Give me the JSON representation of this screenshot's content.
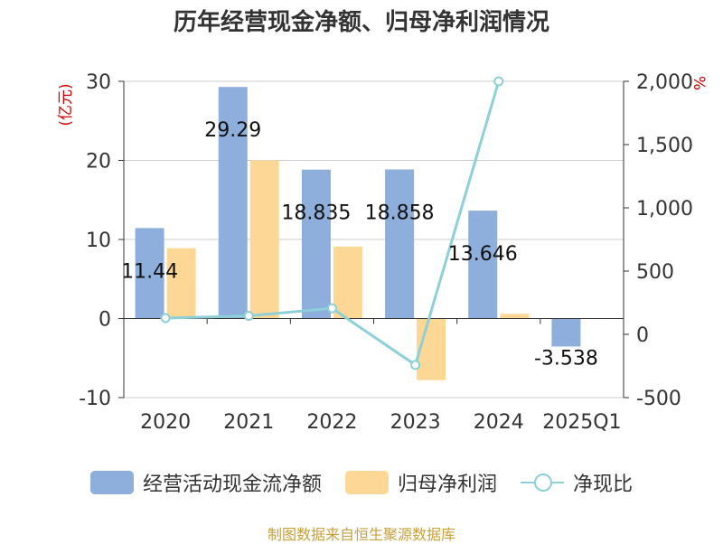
{
  "title": "历年经营现金净额、归母净利润情况",
  "source": "制图数据来自恒生聚源数据库",
  "colors": {
    "bar1": "#8eaedb",
    "bar2": "#fdd795",
    "line": "#8dd0d8",
    "left_unit": "#cc0000",
    "grid": "#cccccc"
  },
  "chart_data": {
    "type": "bar",
    "categories": [
      "2020",
      "2021",
      "2022",
      "2023",
      "2024",
      "2025Q1"
    ],
    "left_axis": {
      "unit": "(亿元)",
      "ylim": [
        -10,
        30
      ],
      "ticks": [
        "30",
        "20",
        "10",
        "0",
        "-10"
      ],
      "tick_values": [
        30,
        20,
        10,
        0,
        -10
      ]
    },
    "right_axis": {
      "unit": "%",
      "ylim": [
        -500,
        2000
      ],
      "ticks": [
        "2,000",
        "1,500",
        "1,000",
        "500",
        "0",
        "-500"
      ],
      "tick_values": [
        2000,
        1500,
        1000,
        500,
        0,
        -500
      ]
    },
    "series": [
      {
        "name": "经营活动现金流净额",
        "kind": "bar",
        "axis": "left",
        "values": [
          11.44,
          29.29,
          18.835,
          18.858,
          13.646,
          -3.538
        ],
        "labels": [
          "11.44",
          "29.29",
          "18.835",
          "18.858",
          "13.646",
          "-3.538"
        ]
      },
      {
        "name": "归母净利润",
        "kind": "bar",
        "axis": "left",
        "values": [
          8.9,
          20.0,
          9.1,
          -7.8,
          0.6,
          0.05
        ]
      },
      {
        "name": "净现比",
        "kind": "line",
        "axis": "right",
        "values": [
          129,
          146,
          206,
          -242,
          2000,
          null
        ]
      }
    ],
    "grid": true,
    "legend_position": "bottom"
  }
}
